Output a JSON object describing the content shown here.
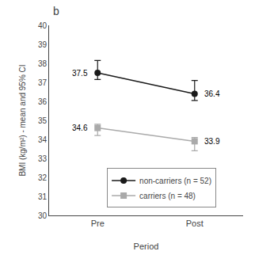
{
  "chart_data": {
    "type": "line",
    "title": "b",
    "x_label": "Period",
    "y_label": "BMI (kg/m²) - mean and 95% CI",
    "categories": [
      "Pre",
      "Post"
    ],
    "series": [
      {
        "name": "non-carriers (n = 52)",
        "color": "#1a1a1a",
        "marker": "circle",
        "values": [
          37.5,
          36.4
        ],
        "error_lower": [
          0.35,
          0.35
        ],
        "error_upper": [
          0.65,
          0.7
        ]
      },
      {
        "name": "carriers (n = 48)",
        "color": "#aaaaaa",
        "marker": "square",
        "values": [
          34.6,
          33.9
        ],
        "error_lower": [
          0.4,
          0.5
        ],
        "error_upper": [
          0.2,
          0.2
        ]
      }
    ],
    "ylim": [
      30,
      40
    ],
    "yticks": [
      30,
      31,
      32,
      33,
      34,
      35,
      36,
      37,
      38,
      39,
      40
    ],
    "data_labels": true,
    "grid": false,
    "legend": "bottom"
  }
}
